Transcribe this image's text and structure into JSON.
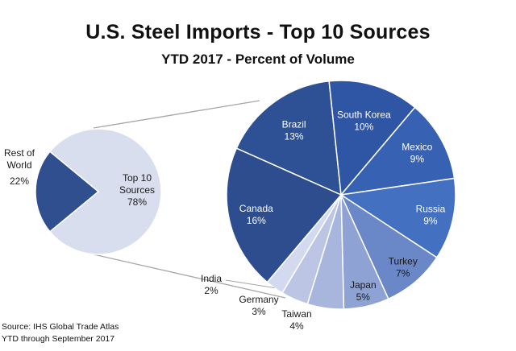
{
  "chart_data": {
    "type": "pie",
    "title": "U.S. Steel Imports - Top 10 Sources",
    "subtitle": "YTD 2017 - Percent of Volume",
    "primary_pie": {
      "slices": [
        {
          "label": "Top 10 Sources",
          "value": 78,
          "value_label": "78%",
          "color": "#d9deef"
        },
        {
          "label": "Rest of World",
          "value": 22,
          "value_label": "22%",
          "color": "#2f4f8f"
        }
      ]
    },
    "secondary_pie": {
      "slices": [
        {
          "label": "Brazil",
          "value": 13,
          "value_label": "13%",
          "color": "#2e5094"
        },
        {
          "label": "South Korea",
          "value": 10,
          "value_label": "10%",
          "color": "#2f56a5"
        },
        {
          "label": "Mexico",
          "value": 9,
          "value_label": "9%",
          "color": "#3762b4"
        },
        {
          "label": "Russia",
          "value": 9,
          "value_label": "9%",
          "color": "#4470c2"
        },
        {
          "label": "Turkey",
          "value": 7,
          "value_label": "7%",
          "color": "#6a87c8"
        },
        {
          "label": "Japan",
          "value": 5,
          "value_label": "5%",
          "color": "#8ea2d4"
        },
        {
          "label": "Taiwan",
          "value": 4,
          "value_label": "4%",
          "color": "#a8b5dc"
        },
        {
          "label": "Germany",
          "value": 3,
          "value_label": "3%",
          "color": "#bcc6e4"
        },
        {
          "label": "India",
          "value": 2,
          "value_label": "2%",
          "color": "#d3d9ee"
        },
        {
          "label": "Canada",
          "value": 16,
          "value_label": "16%",
          "color": "#2d4d8e"
        }
      ]
    },
    "legend": "none"
  },
  "source": {
    "line1": "Source: IHS Global Trade Atlas",
    "line2": "YTD through September 2017"
  }
}
